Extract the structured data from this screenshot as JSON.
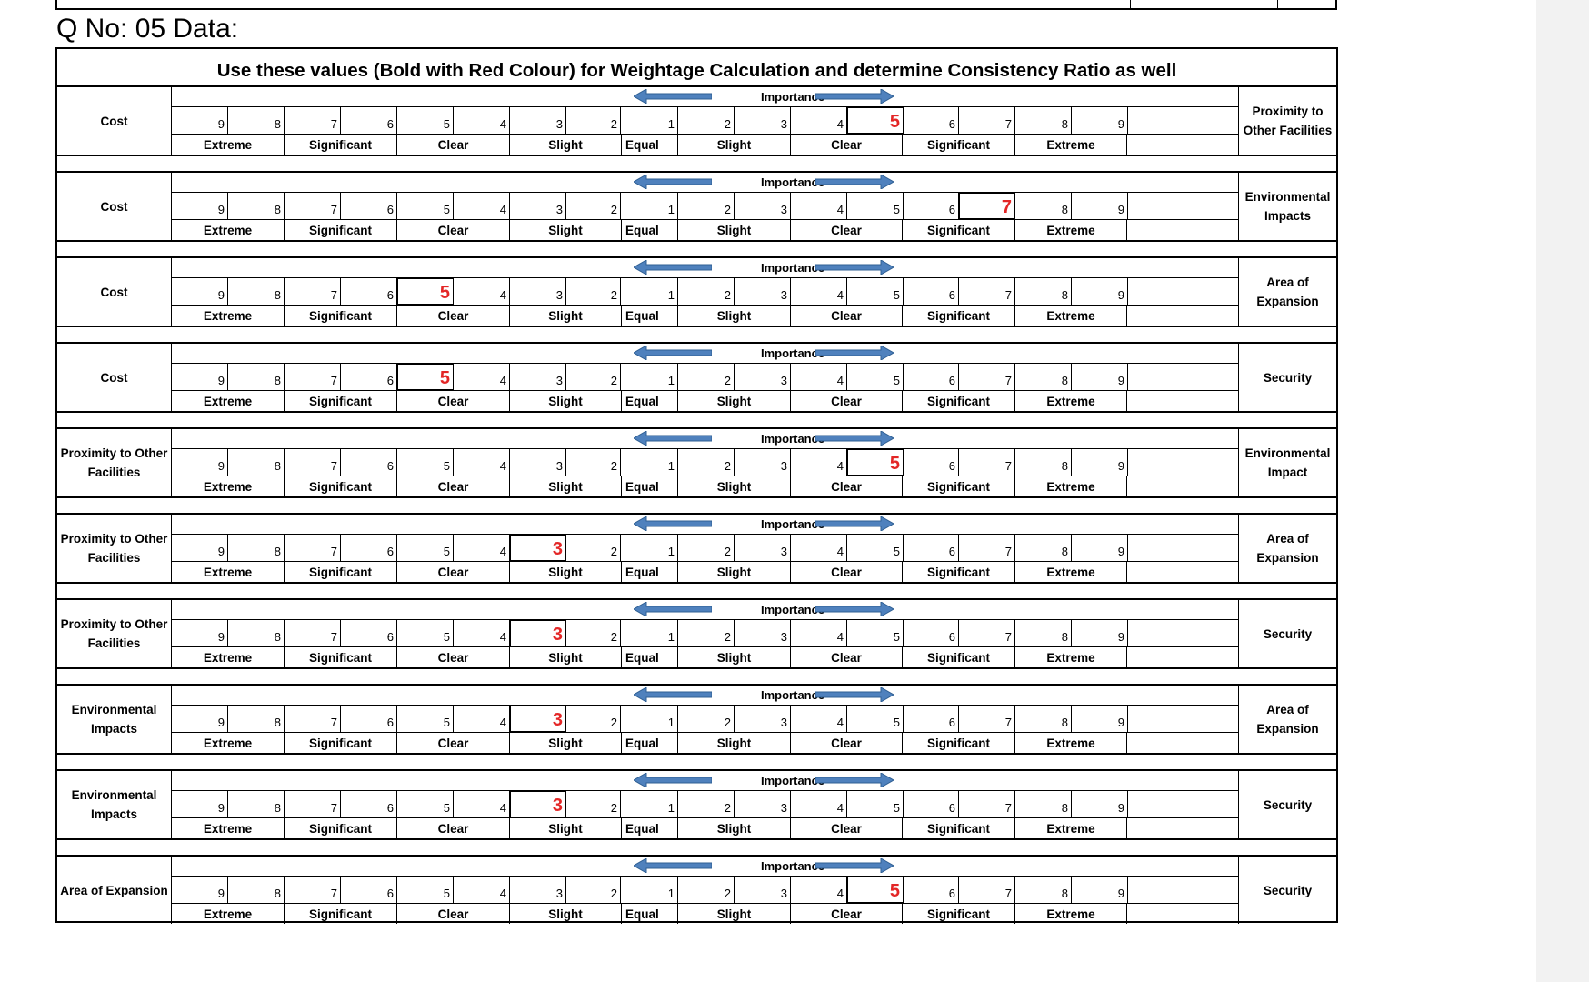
{
  "question_title": "Q No: 05 Data:",
  "instruction": "Use these values (Bold with Red Colour) for Weightage Calculation and determine Consistency Ratio as well",
  "importance_label": "Importance",
  "colors": {
    "highlight": "#e32626",
    "arrow": "#4f81bd"
  },
  "scale_numbers": [
    "9",
    "8",
    "7",
    "6",
    "5",
    "4",
    "3",
    "2",
    "1",
    "2",
    "3",
    "4",
    "5",
    "6",
    "7",
    "8",
    "9"
  ],
  "scale_labels": [
    "Extreme",
    "Significant",
    "Clear",
    "Slight",
    "Equal",
    "Slight",
    "Clear",
    "Significant",
    "Extreme"
  ],
  "comparisons": [
    {
      "left": "Cost",
      "right": "Proximity to\nOther Facilities",
      "selected": "5",
      "selected_index": 12
    },
    {
      "left": "Cost",
      "right": "Environmental\nImpacts",
      "selected": "7",
      "selected_index": 14
    },
    {
      "left": "Cost",
      "right": "Area of\nExpansion",
      "selected": "5",
      "selected_index": 4
    },
    {
      "left": "Cost",
      "right": "Security",
      "selected": "5",
      "selected_index": 4
    },
    {
      "left": "Proximity to Other\nFacilities",
      "right": "Environmental\nImpact",
      "selected": "5",
      "selected_index": 12
    },
    {
      "left": "Proximity to Other\nFacilities",
      "right": "Area of\nExpansion",
      "selected": "3",
      "selected_index": 6
    },
    {
      "left": "Proximity to Other\nFacilities",
      "right": "Security",
      "selected": "3",
      "selected_index": 6
    },
    {
      "left": "Environmental\nImpacts",
      "right": "Area of\nExpansion",
      "selected": "3",
      "selected_index": 6
    },
    {
      "left": "Environmental\nImpacts",
      "right": "Security",
      "selected": "3",
      "selected_index": 6
    },
    {
      "left": "Area of Expansion",
      "right": "Security",
      "selected": "5",
      "selected_index": 12
    }
  ]
}
